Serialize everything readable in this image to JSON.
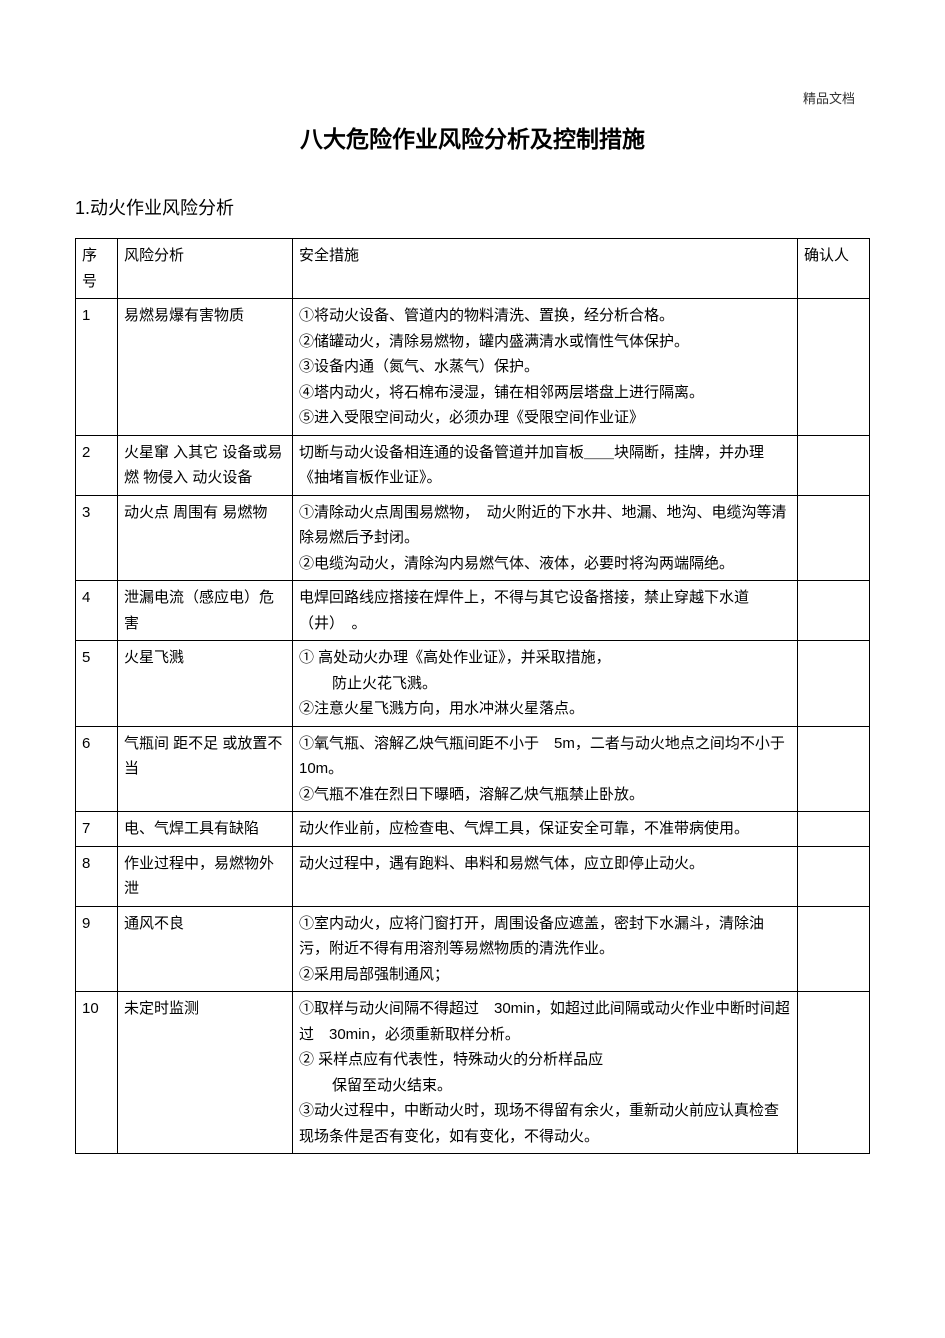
{
  "watermark": "精品文档",
  "title": "八大危险作业风险分析及控制措施",
  "section_title": "1.动火作业风险分析",
  "columns": {
    "num": "序号",
    "risk": "风险分析",
    "measure": "安全措施",
    "confirm": "确认人"
  },
  "rows": [
    {
      "num": "1",
      "risk": "易燃易爆有害物质",
      "measures": [
        {
          "text": "①将动火设备、管道内的物料清洗、置换，经分析合格。",
          "indent": false
        },
        {
          "text": "②储罐动火，清除易燃物，罐内盛满清水或惰性气体保护。",
          "indent": false
        },
        {
          "text": "③设备内通（氮气、水蒸气）保护。",
          "indent": false
        },
        {
          "text": "④塔内动火，将石棉布浸湿，铺在相邻两层塔盘上进行隔离。",
          "indent": false
        },
        {
          "text": "⑤进入受限空间动火，必须办理《受限空间作业证》",
          "indent": false
        }
      ]
    },
    {
      "num": "2",
      "risk": "火星窜 入其它 设备或易燃 物侵入 动火设备",
      "measures": [
        {
          "text": "切断与动火设备相连通的设备管道并加盲板＿＿块隔断，挂牌，并办理《抽堵盲板作业证》。",
          "indent": false
        }
      ]
    },
    {
      "num": "3",
      "risk": "动火点 周围有 易燃物",
      "measures": [
        {
          "text": "①清除动火点周围易燃物，　动火附近的下水井、地漏、地沟、电缆沟等清除易燃后予封闭。",
          "indent": false
        },
        {
          "text": "②电缆沟动火，清除沟内易燃气体、液体，必要时将沟两端隔绝。",
          "indent": false
        }
      ]
    },
    {
      "num": "4",
      "risk": "泄漏电流（感应电）危害",
      "measures": [
        {
          "text": "电焊回路线应搭接在焊件上，不得与其它设备搭接，禁止穿越下水道（井）　。",
          "indent": false
        }
      ]
    },
    {
      "num": "5",
      "risk": "火星飞溅",
      "measures": [
        {
          "text": "① 高处动火办理《高处作业证》，并采取措施，",
          "indent": false
        },
        {
          "text": "防止火花飞溅。",
          "indent": true
        },
        {
          "text": "②注意火星飞溅方向，用水冲淋火星落点。",
          "indent": false
        }
      ]
    },
    {
      "num": "6",
      "risk": "气瓶间 距不足 或放置不当",
      "measures": [
        {
          "text": "①氧气瓶、溶解乙炔气瓶间距不小于　5m，二者与动火地点之间均不小于　10m。",
          "indent": false
        },
        {
          "text": "②气瓶不准在烈日下曝晒，溶解乙炔气瓶禁止卧放。",
          "indent": false
        }
      ]
    },
    {
      "num": "7",
      "risk": "电、气焊工具有缺陷",
      "measures": [
        {
          "text": "动火作业前，应检查电、气焊工具，保证安全可靠，不准带病使用。",
          "indent": false
        }
      ]
    },
    {
      "num": "8",
      "risk": "作业过程中，易燃物外泄",
      "measures": [
        {
          "text": "动火过程中，遇有跑料、串料和易燃气体，应立即停止动火。",
          "indent": false
        }
      ]
    },
    {
      "num": "9",
      "risk": "通风不良",
      "measures": [
        {
          "text": "①室内动火，应将门窗打开，周围设备应遮盖，密封下水漏斗，清除油污，附近不得有用溶剂等易燃物质的清洗作业。",
          "indent": false
        },
        {
          "text": "②采用局部强制通风；",
          "indent": false
        }
      ]
    },
    {
      "num": "10",
      "risk": "未定时监测",
      "measures": [
        {
          "text": "①取样与动火间隔不得超过　30min，如超过此间隔或动火作业中断时间超过　30min，必须重新取样分析。",
          "indent": false
        },
        {
          "text": "② 采样点应有代表性，特殊动火的分析样品应",
          "indent": false
        },
        {
          "text": "保留至动火结束。",
          "indent": true
        },
        {
          "text": "③动火过程中，中断动火时，现场不得留有余火，重新动火前应认真检查现场条件是否有变化，如有变化，不得动火。",
          "indent": false
        }
      ]
    }
  ]
}
